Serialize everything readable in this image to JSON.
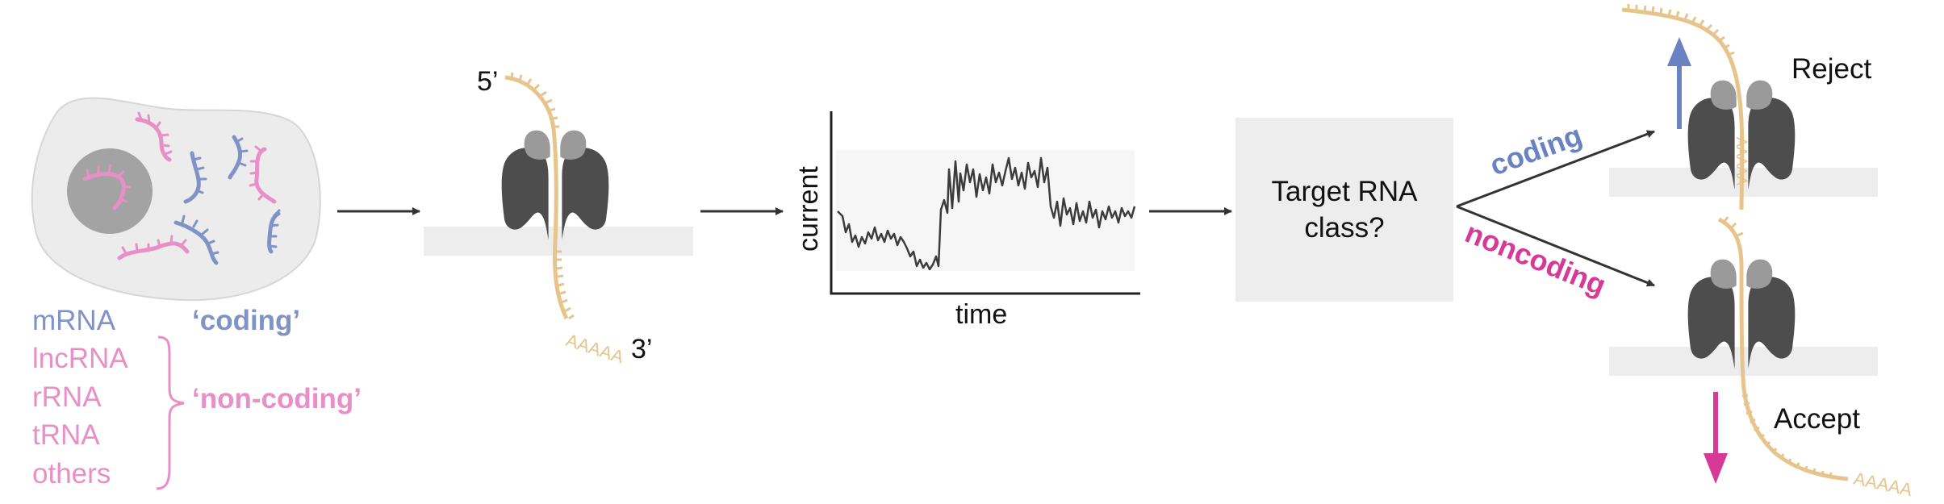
{
  "colors": {
    "coding": "#7f93c7",
    "noncoding": "#e98fc7",
    "noncoding_strong": "#d63a96",
    "coding_arrow": "#6a82c2",
    "rna": "#e8c48d",
    "pore_dark": "#4d4d4d",
    "pore_light": "#9a9a9a",
    "membrane": "#ededed",
    "cell": "#ececec",
    "nucleus": "#a3a3a3",
    "line": "#333333"
  },
  "cell_panel": {
    "legend": {
      "mrna": "mRNA",
      "coding_label": "‘coding’",
      "lncrna": "lncRNA",
      "rrna": "rRNA",
      "trna": "tRNA",
      "others": "others",
      "noncoding_label": "‘non-coding’"
    }
  },
  "pore_panel": {
    "five_prime": "5’",
    "three_prime": "3’",
    "polya": "AAAAA"
  },
  "signal_panel": {
    "ylabel": "current",
    "xlabel": "time"
  },
  "decision_panel": {
    "question_line1": "Target RNA",
    "question_line2": "class?",
    "coding_branch": "coding",
    "noncoding_branch": "noncoding"
  },
  "outcome_panel": {
    "reject": "Reject",
    "accept": "Accept",
    "polya_accept": "AAAAA",
    "polya_reject": "AAAAA"
  }
}
